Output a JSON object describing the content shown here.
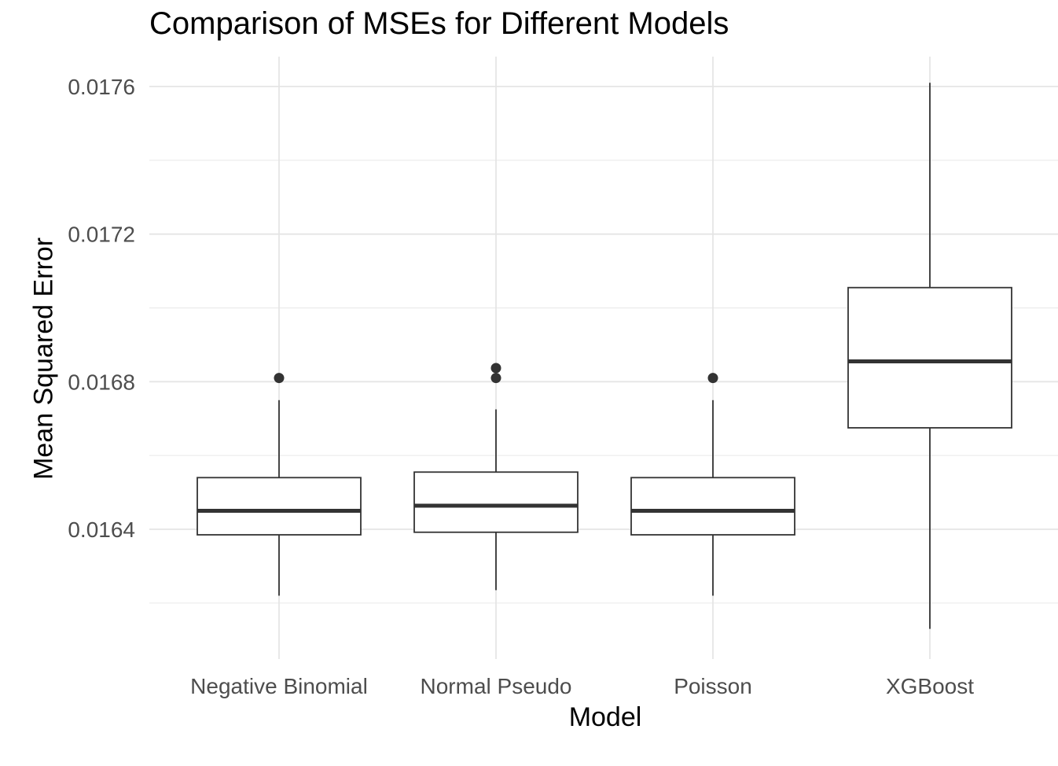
{
  "chart_data": {
    "type": "boxplot",
    "title": "Comparison of MSEs for Different Models",
    "xlabel": "Model",
    "ylabel": "Mean Squared Error",
    "ylim": [
      0.01612,
      0.01768
    ],
    "yticks": [
      "0.0164",
      "0.0168",
      "0.0172",
      "0.0176"
    ],
    "yticks_values": [
      0.0164,
      0.0168,
      0.0172,
      0.0176
    ],
    "grid": true,
    "categories": [
      "Negative Binomial",
      "Normal Pseudo",
      "Poisson",
      "XGBoost"
    ],
    "boxes": [
      {
        "category": "Negative Binomial",
        "whisker_low": 0.01622,
        "q1": 0.016385,
        "median": 0.01645,
        "q3": 0.01654,
        "whisker_high": 0.01675,
        "outliers": [
          0.01681
        ]
      },
      {
        "category": "Normal Pseudo",
        "whisker_low": 0.016235,
        "q1": 0.016392,
        "median": 0.016464,
        "q3": 0.016555,
        "whisker_high": 0.016725,
        "outliers": [
          0.01681,
          0.016837
        ]
      },
      {
        "category": "Poisson",
        "whisker_low": 0.01622,
        "q1": 0.016385,
        "median": 0.01645,
        "q3": 0.01654,
        "whisker_high": 0.01675,
        "outliers": [
          0.01681
        ]
      },
      {
        "category": "XGBoost",
        "whisker_low": 0.01613,
        "q1": 0.016675,
        "median": 0.016855,
        "q3": 0.017055,
        "whisker_high": 0.01761,
        "outliers": []
      }
    ]
  }
}
